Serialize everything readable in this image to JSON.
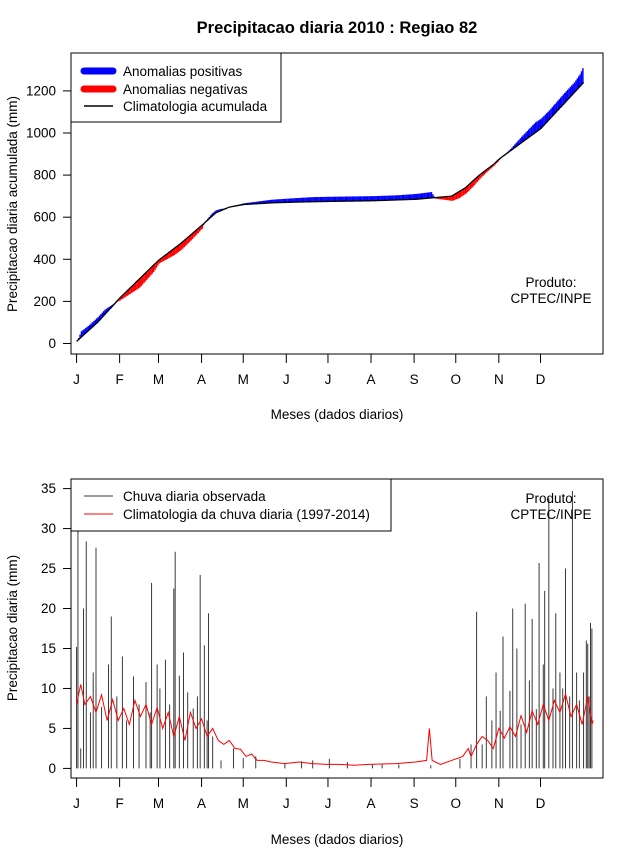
{
  "title": "Precipitacao diaria 2010 : Regiao 82",
  "colors": {
    "positive": "#0000ff",
    "negative": "#ff0000",
    "observed": "#3a3a3a",
    "climatology": "#ff0000",
    "line": "#000000"
  },
  "chart_data": [
    {
      "type": "area",
      "ylabel": "Precipitacao diaria acumulada (mm)",
      "xlabel": "Meses (dados diarios)",
      "product_label": "Produto:",
      "product_source": "CPTEC/INPE",
      "x_ticks": [
        "J",
        "F",
        "M",
        "A",
        "M",
        "J",
        "J",
        "A",
        "S",
        "O",
        "N",
        "D"
      ],
      "y_ticks": [
        "0",
        "200",
        "400",
        "600",
        "800",
        "1000",
        "1200"
      ],
      "ylim": [
        -50,
        1380
      ],
      "xlim_days": [
        -4,
        379
      ],
      "legend": [
        {
          "label": "Anomalias positivas",
          "kind": "positive"
        },
        {
          "label": "Anomalias negativas",
          "kind": "negative"
        },
        {
          "label": "Climatologia acumulada",
          "kind": "line"
        }
      ],
      "climatology_knots": [
        [
          0,
          10
        ],
        [
          15,
          100
        ],
        [
          31,
          215
        ],
        [
          59,
          395
        ],
        [
          75,
          475
        ],
        [
          90,
          560
        ],
        [
          100,
          620
        ],
        [
          110,
          648
        ],
        [
          120,
          660
        ],
        [
          140,
          668
        ],
        [
          160,
          672
        ],
        [
          182,
          675
        ],
        [
          213,
          678
        ],
        [
          244,
          685
        ],
        [
          270,
          700
        ],
        [
          280,
          740
        ],
        [
          290,
          800
        ],
        [
          300,
          850
        ],
        [
          305,
          880
        ],
        [
          334,
          1020
        ],
        [
          365,
          1240
        ]
      ],
      "anomaly_knots": [
        [
          0,
          0
        ],
        [
          3,
          30
        ],
        [
          8,
          25
        ],
        [
          20,
          25
        ],
        [
          27,
          5
        ],
        [
          31,
          -10
        ],
        [
          45,
          -40
        ],
        [
          55,
          -30
        ],
        [
          59,
          -15
        ],
        [
          70,
          -30
        ],
        [
          76,
          -30
        ],
        [
          82,
          -25
        ],
        [
          90,
          -15
        ],
        [
          92,
          5
        ],
        [
          97,
          15
        ],
        [
          103,
          10
        ],
        [
          106,
          5
        ],
        [
          112,
          0
        ],
        [
          118,
          5
        ],
        [
          140,
          15
        ],
        [
          170,
          22
        ],
        [
          200,
          22
        ],
        [
          230,
          22
        ],
        [
          255,
          28
        ],
        [
          258,
          -5
        ],
        [
          265,
          -15
        ],
        [
          275,
          -30
        ],
        [
          285,
          -25
        ],
        [
          295,
          -10
        ],
        [
          303,
          -5
        ],
        [
          306,
          0
        ],
        [
          312,
          10
        ],
        [
          320,
          30
        ],
        [
          330,
          50
        ],
        [
          340,
          45
        ],
        [
          350,
          50
        ],
        [
          358,
          50
        ],
        [
          362,
          60
        ],
        [
          364,
          75
        ]
      ]
    },
    {
      "type": "line",
      "ylabel": "Precipitacao diaria (mm)",
      "xlabel": "Meses (dados diarios)",
      "product_label": "Produto:",
      "product_source": "CPTEC/INPE",
      "x_ticks": [
        "J",
        "F",
        "M",
        "A",
        "M",
        "J",
        "J",
        "A",
        "S",
        "O",
        "N",
        "D"
      ],
      "y_ticks": [
        "0",
        "5",
        "10",
        "15",
        "20",
        "25",
        "30",
        "35"
      ],
      "ylim": [
        -1.2,
        36.2
      ],
      "xlim_days": [
        -4,
        379
      ],
      "legend": [
        {
          "label": "Chuva diaria observada",
          "kind": "observed"
        },
        {
          "label": "Climatologia da chuva diaria (1997-2014)",
          "kind": "climatology"
        }
      ],
      "observed_peaks": [
        [
          0,
          15.2
        ],
        [
          1,
          31.5
        ],
        [
          3,
          2.5
        ],
        [
          5,
          20
        ],
        [
          7,
          28.4
        ],
        [
          10,
          7
        ],
        [
          12,
          12
        ],
        [
          14,
          27.6
        ],
        [
          18,
          7.7
        ],
        [
          23,
          13
        ],
        [
          25,
          19
        ],
        [
          29,
          9
        ],
        [
          33,
          14
        ],
        [
          36,
          6
        ],
        [
          41,
          11.5
        ],
        [
          45,
          8
        ],
        [
          50,
          10.8
        ],
        [
          53,
          7
        ],
        [
          54,
          23.2
        ],
        [
          58,
          13
        ],
        [
          60,
          10
        ],
        [
          64,
          13.6
        ],
        [
          67,
          8
        ],
        [
          70,
          22.5
        ],
        [
          71,
          27.1
        ],
        [
          74,
          11.6
        ],
        [
          77,
          14.5
        ],
        [
          80,
          9.5
        ],
        [
          84,
          7.5
        ],
        [
          87,
          9
        ],
        [
          89,
          24.2
        ],
        [
          92,
          15.4
        ],
        [
          94,
          6
        ],
        [
          95,
          19.4
        ],
        [
          98,
          4
        ],
        [
          104,
          1
        ],
        [
          113,
          2.5
        ],
        [
          120,
          1.3
        ],
        [
          129,
          1.5
        ],
        [
          150,
          0.6
        ],
        [
          162,
          0.9
        ],
        [
          170,
          1
        ],
        [
          182,
          1.2
        ],
        [
          195,
          0.8
        ],
        [
          213,
          0.5
        ],
        [
          220,
          0.6
        ],
        [
          232,
          0.5
        ],
        [
          255,
          0.4
        ],
        [
          276,
          1.2
        ],
        [
          284,
          3
        ],
        [
          288,
          19.6
        ],
        [
          292,
          3
        ],
        [
          295,
          9
        ],
        [
          299,
          6
        ],
        [
          302,
          12
        ],
        [
          305,
          7.2
        ],
        [
          307,
          16.5
        ],
        [
          312,
          9.7
        ],
        [
          314,
          20
        ],
        [
          317,
          15
        ],
        [
          320,
          5.5
        ],
        [
          323,
          20.6
        ],
        [
          326,
          11
        ],
        [
          328,
          18.7
        ],
        [
          331,
          7.4
        ],
        [
          333,
          25.7
        ],
        [
          336,
          13
        ],
        [
          337,
          22.2
        ],
        [
          340,
          33.8
        ],
        [
          343,
          10
        ],
        [
          345,
          19.4
        ],
        [
          348,
          12
        ],
        [
          350,
          10
        ],
        [
          352,
          25
        ],
        [
          355,
          9
        ],
        [
          357,
          34.7
        ],
        [
          360,
          12
        ],
        [
          362,
          8.5
        ],
        [
          365,
          12
        ],
        [
          367,
          16
        ],
        [
          368,
          15.6
        ],
        [
          369,
          9
        ],
        [
          370,
          18.2
        ],
        [
          371,
          17.5
        ]
      ],
      "climatology_knots": [
        [
          0,
          8
        ],
        [
          3,
          10.5
        ],
        [
          6,
          8
        ],
        [
          10,
          9
        ],
        [
          14,
          7
        ],
        [
          18,
          9.2
        ],
        [
          22,
          6
        ],
        [
          26,
          8.6
        ],
        [
          30,
          6
        ],
        [
          34,
          7.5
        ],
        [
          38,
          5.5
        ],
        [
          42,
          8.5
        ],
        [
          46,
          6.5
        ],
        [
          50,
          8
        ],
        [
          54,
          5.5
        ],
        [
          58,
          7.6
        ],
        [
          62,
          5
        ],
        [
          66,
          7
        ],
        [
          70,
          4
        ],
        [
          74,
          6.5
        ],
        [
          78,
          3.5
        ],
        [
          82,
          7
        ],
        [
          86,
          5
        ],
        [
          90,
          6.2
        ],
        [
          94,
          4
        ],
        [
          98,
          5
        ],
        [
          102,
          3.5
        ],
        [
          106,
          3
        ],
        [
          110,
          3.5
        ],
        [
          114,
          2.5
        ],
        [
          118,
          2.4
        ],
        [
          122,
          1.5
        ],
        [
          126,
          1.8
        ],
        [
          130,
          1
        ],
        [
          135,
          1
        ],
        [
          140,
          0.8
        ],
        [
          150,
          0.6
        ],
        [
          160,
          0.8
        ],
        [
          170,
          0.6
        ],
        [
          180,
          0.5
        ],
        [
          190,
          0.5
        ],
        [
          200,
          0.4
        ],
        [
          210,
          0.5
        ],
        [
          230,
          0.6
        ],
        [
          244,
          0.8
        ],
        [
          252,
          1
        ],
        [
          254,
          5
        ],
        [
          256,
          1
        ],
        [
          262,
          0.5
        ],
        [
          270,
          1
        ],
        [
          278,
          1.5
        ],
        [
          282,
          2.5
        ],
        [
          284,
          1.5
        ],
        [
          288,
          3
        ],
        [
          292,
          4
        ],
        [
          296,
          3.5
        ],
        [
          300,
          2.5
        ],
        [
          304,
          5
        ],
        [
          308,
          3.8
        ],
        [
          312,
          5.2
        ],
        [
          316,
          4
        ],
        [
          320,
          6.6
        ],
        [
          324,
          4.5
        ],
        [
          328,
          7.2
        ],
        [
          332,
          5.5
        ],
        [
          336,
          8
        ],
        [
          340,
          6
        ],
        [
          344,
          8.5
        ],
        [
          348,
          7
        ],
        [
          352,
          9.3
        ],
        [
          356,
          6.5
        ],
        [
          360,
          8
        ],
        [
          364,
          5.5
        ],
        [
          368,
          9
        ],
        [
          371,
          5.5
        ],
        [
          372,
          6
        ]
      ]
    }
  ]
}
